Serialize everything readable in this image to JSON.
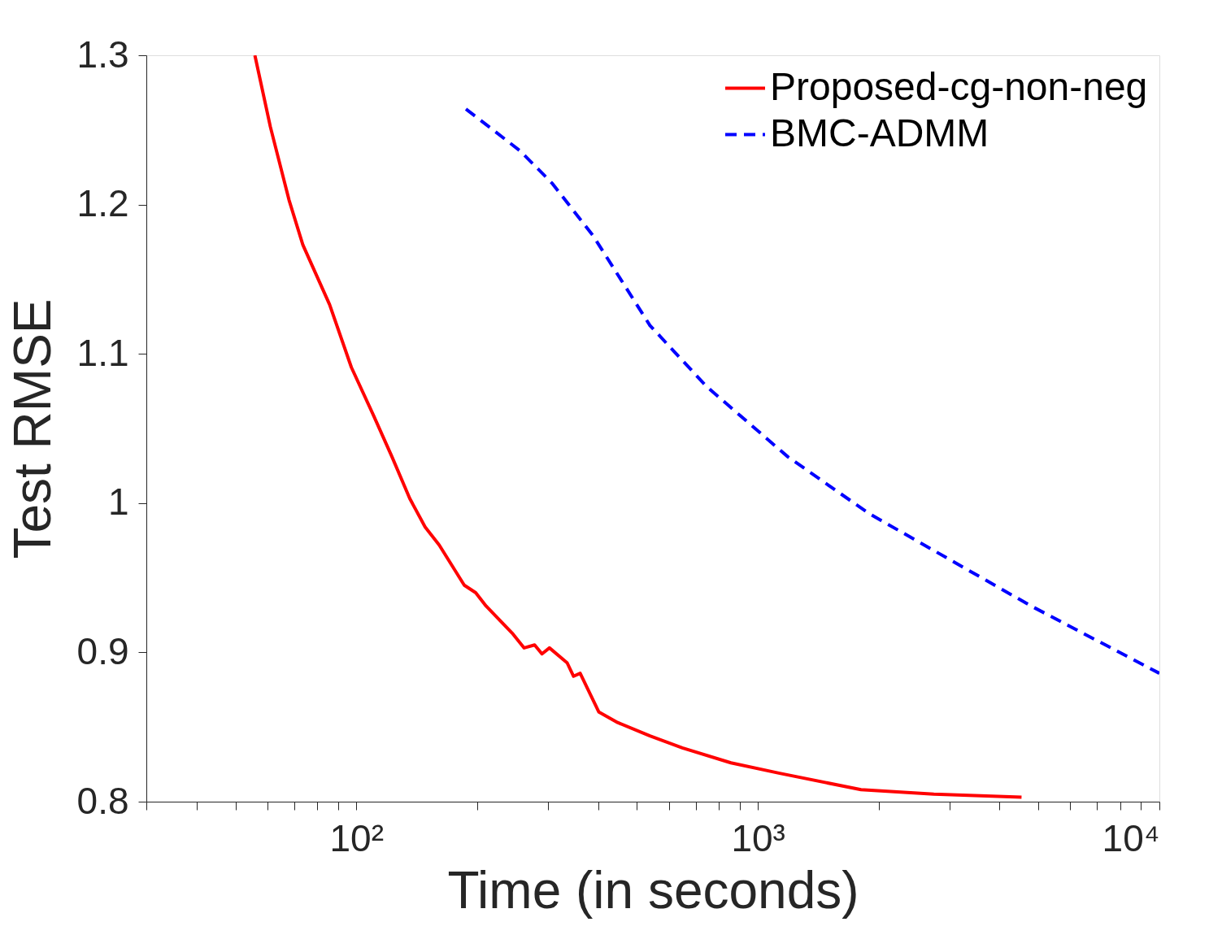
{
  "chart_data": {
    "type": "line",
    "xlabel": "Time (in seconds)",
    "ylabel": "Test RMSE",
    "log": "x",
    "grid": false,
    "legend": "top right",
    "xlim": [
      30,
      10000
    ],
    "ylim": [
      0.8,
      1.3
    ],
    "xticks": [
      {
        "value": 30,
        "label": null
      },
      {
        "value": 40,
        "label": null
      },
      {
        "value": 50,
        "label": null
      },
      {
        "value": 60,
        "label": null
      },
      {
        "value": 70,
        "label": null
      },
      {
        "value": 80,
        "label": null
      },
      {
        "value": 90,
        "label": null
      },
      {
        "value": 100,
        "label": "10²"
      },
      {
        "value": 200,
        "label": null
      },
      {
        "value": 300,
        "label": null
      },
      {
        "value": 400,
        "label": null
      },
      {
        "value": 500,
        "label": null
      },
      {
        "value": 600,
        "label": null
      },
      {
        "value": 700,
        "label": null
      },
      {
        "value": 800,
        "label": null
      },
      {
        "value": 900,
        "label": null
      },
      {
        "value": 1000,
        "label": "10³"
      },
      {
        "value": 2000,
        "label": null
      },
      {
        "value": 3000,
        "label": null
      },
      {
        "value": 4000,
        "label": null
      },
      {
        "value": 5000,
        "label": null
      },
      {
        "value": 6000,
        "label": null
      },
      {
        "value": 7000,
        "label": null
      },
      {
        "value": 8000,
        "label": null
      },
      {
        "value": 9000,
        "label": null
      },
      {
        "value": 10000,
        "label": "10⁴"
      }
    ],
    "yticks": [
      0.8,
      0.9,
      1,
      1.1,
      1.2,
      1.3
    ],
    "series": [
      {
        "name": "Proposed-cg-non-neg",
        "color": "#ff0000",
        "line_style": "solid",
        "x": [
          55.9,
          61.1,
          68,
          73.6,
          85.8,
          97.2,
          110.7,
          122.7,
          135.9,
          148.4,
          160.8,
          185.7,
          198.3,
          210.5,
          244.3,
          261.8,
          278,
          290,
          302.7,
          335,
          347.6,
          361,
          401.9,
          447.5,
          538.7,
          648.6,
          857,
          1134,
          1807,
          2743,
          4536
        ],
        "values": [
          1.3,
          1.252,
          1.203,
          1.173,
          1.133,
          1.091,
          1.058,
          1.031,
          1.003,
          0.984,
          0.972,
          0.945,
          0.94,
          0.931,
          0.913,
          0.903,
          0.905,
          0.899,
          0.903,
          0.893,
          0.884,
          0.886,
          0.86,
          0.853,
          0.844,
          0.836,
          0.826,
          0.819,
          0.808,
          0.805,
          0.803
        ]
      },
      {
        "name": "BMC-ADMM",
        "color": "#0000ff",
        "line_style": "dashed",
        "x": [
          187.5,
          255.8,
          308,
          389,
          538.7,
          746,
          1188,
          1892,
          3013,
          4798,
          10000
        ],
        "values": [
          1.264,
          1.236,
          1.214,
          1.179,
          1.119,
          1.078,
          1.031,
          0.993,
          0.962,
          0.931,
          0.886
        ]
      }
    ]
  }
}
